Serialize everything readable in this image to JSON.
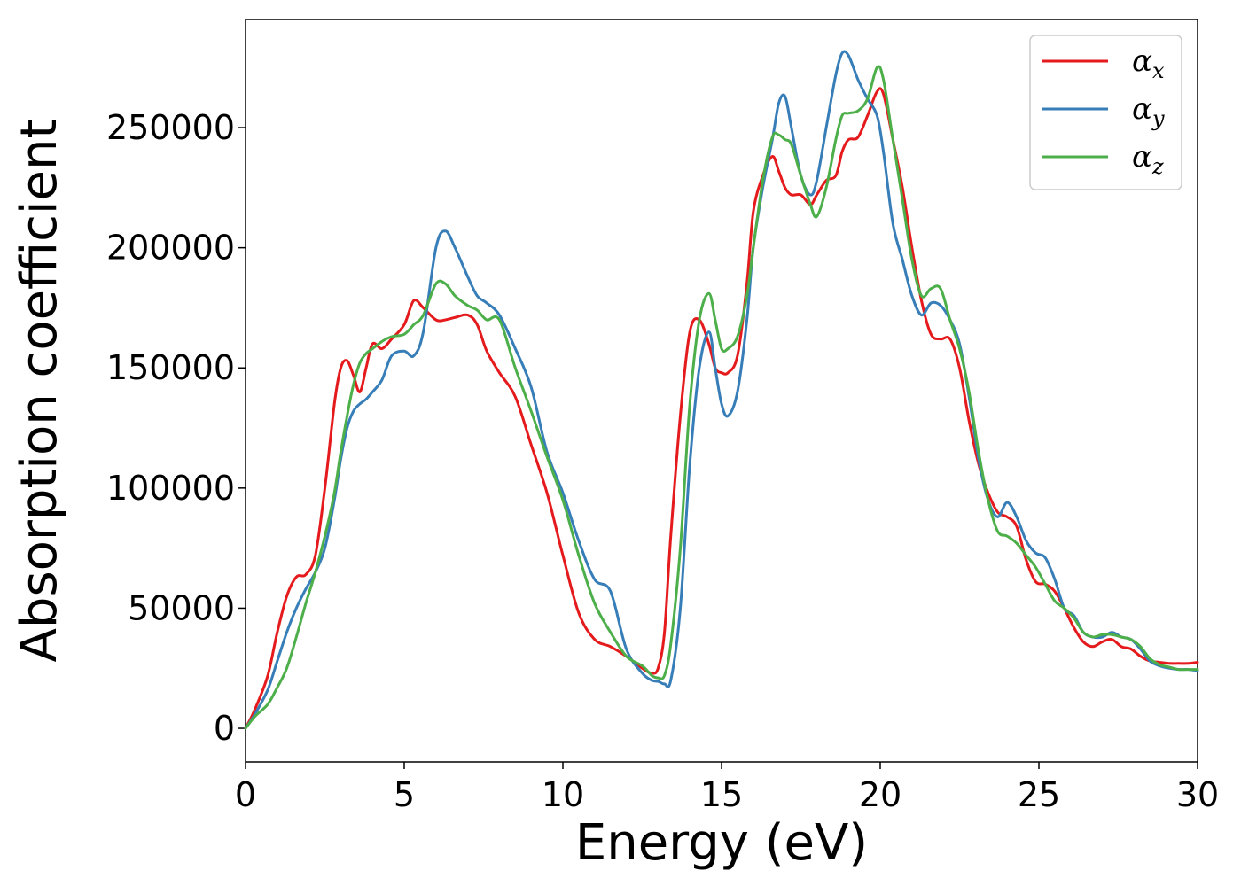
{
  "chart_data": {
    "type": "line",
    "xlabel": "Energy (eV)",
    "ylabel": "Absorption coefficient",
    "xlim": [
      0,
      30
    ],
    "ylim": [
      -14000,
      295000
    ],
    "xticks": [
      0,
      5,
      10,
      15,
      20,
      25,
      30
    ],
    "yticks": [
      0,
      50000,
      100000,
      150000,
      200000,
      250000
    ],
    "grid": false,
    "legend_position": "top-right",
    "series": [
      {
        "name": "α_x",
        "label_main": "α",
        "label_sub": "x",
        "color": "#e41a1c",
        "x": [
          0,
          0.3,
          0.7,
          1.0,
          1.3,
          1.6,
          1.9,
          2.2,
          2.5,
          2.8,
          3.0,
          3.2,
          3.4,
          3.6,
          3.8,
          4.0,
          4.3,
          4.6,
          5.0,
          5.3,
          5.6,
          6.0,
          6.3,
          6.6,
          7.0,
          7.3,
          7.6,
          8.0,
          8.5,
          9.0,
          9.5,
          10.0,
          10.5,
          11.0,
          11.5,
          12.0,
          12.5,
          12.8,
          13.0,
          13.2,
          13.4,
          13.7,
          14.0,
          14.3,
          14.6,
          14.8,
          15.0,
          15.2,
          15.5,
          15.8,
          16.0,
          16.3,
          16.6,
          16.8,
          17.0,
          17.2,
          17.5,
          17.8,
          18.0,
          18.3,
          18.6,
          18.8,
          19.0,
          19.3,
          19.6,
          19.9,
          20.1,
          20.4,
          20.7,
          21.0,
          21.3,
          21.6,
          21.9,
          22.2,
          22.5,
          22.8,
          23.1,
          23.4,
          23.7,
          24.0,
          24.3,
          24.6,
          24.9,
          25.2,
          25.5,
          25.8,
          26.1,
          26.4,
          26.7,
          27.0,
          27.3,
          27.6,
          27.9,
          28.2,
          28.5,
          28.8,
          29.1,
          29.4,
          29.7,
          30.0
        ],
        "y": [
          0,
          8000,
          22000,
          40000,
          55000,
          63000,
          64000,
          72000,
          100000,
          135000,
          150000,
          153000,
          147000,
          140000,
          150000,
          160000,
          158000,
          162000,
          168000,
          178000,
          175000,
          170000,
          170000,
          171000,
          172000,
          168000,
          157000,
          148000,
          138000,
          118000,
          98000,
          72000,
          48000,
          37000,
          34000,
          30000,
          25000,
          23000,
          25000,
          40000,
          80000,
          130000,
          165000,
          170000,
          160000,
          150000,
          148000,
          148000,
          155000,
          185000,
          215000,
          230000,
          238000,
          232000,
          225000,
          222000,
          222000,
          218000,
          222000,
          228000,
          230000,
          240000,
          245000,
          246000,
          255000,
          265000,
          264000,
          245000,
          225000,
          200000,
          178000,
          164000,
          162000,
          162000,
          150000,
          128000,
          110000,
          98000,
          90000,
          88000,
          84000,
          70000,
          61000,
          60000,
          57000,
          50000,
          42000,
          36000,
          34000,
          36000,
          37000,
          34000,
          33000,
          30000,
          28000,
          27500,
          27000,
          27000,
          27000,
          27500
        ]
      },
      {
        "name": "α_y",
        "label_main": "α",
        "label_sub": "y",
        "color": "#377eb8",
        "x": [
          0,
          0.3,
          0.7,
          1.0,
          1.3,
          1.6,
          1.9,
          2.2,
          2.5,
          2.8,
          3.0,
          3.2,
          3.4,
          3.6,
          3.8,
          4.0,
          4.3,
          4.6,
          5.0,
          5.3,
          5.6,
          6.0,
          6.3,
          6.6,
          7.0,
          7.3,
          7.6,
          8.0,
          8.5,
          9.0,
          9.5,
          10.0,
          10.5,
          11.0,
          11.5,
          12.0,
          12.5,
          12.8,
          13.0,
          13.2,
          13.4,
          13.7,
          14.0,
          14.3,
          14.6,
          14.8,
          15.0,
          15.2,
          15.5,
          15.8,
          16.0,
          16.3,
          16.6,
          16.8,
          17.0,
          17.2,
          17.5,
          17.8,
          18.0,
          18.3,
          18.6,
          18.8,
          19.0,
          19.3,
          19.6,
          19.9,
          20.1,
          20.4,
          20.7,
          21.0,
          21.3,
          21.6,
          21.9,
          22.2,
          22.5,
          22.8,
          23.1,
          23.4,
          23.7,
          24.0,
          24.3,
          24.6,
          24.9,
          25.2,
          25.5,
          25.8,
          26.1,
          26.4,
          26.7,
          27.0,
          27.3,
          27.6,
          27.9,
          28.2,
          28.5,
          28.8,
          29.1,
          29.4,
          29.7,
          30.0
        ],
        "y": [
          0,
          6000,
          16000,
          28000,
          40000,
          50000,
          58000,
          65000,
          75000,
          95000,
          112000,
          125000,
          132000,
          135000,
          137000,
          140000,
          145000,
          155000,
          157000,
          155000,
          165000,
          200000,
          207000,
          200000,
          188000,
          180000,
          177000,
          172000,
          158000,
          142000,
          115000,
          98000,
          78000,
          62000,
          57000,
          33000,
          23000,
          20000,
          19500,
          18500,
          20000,
          50000,
          110000,
          150000,
          165000,
          150000,
          135000,
          130000,
          140000,
          170000,
          200000,
          225000,
          245000,
          260000,
          263000,
          250000,
          230000,
          222000,
          228000,
          250000,
          272000,
          281000,
          280000,
          270000,
          262000,
          255000,
          240000,
          210000,
          195000,
          180000,
          172000,
          177000,
          176000,
          170000,
          160000,
          138000,
          112000,
          95000,
          88000,
          94000,
          88000,
          78000,
          73000,
          71000,
          62000,
          50000,
          47000,
          40000,
          38000,
          38000,
          40000,
          38000,
          37000,
          33000,
          28000,
          26000,
          25000,
          24500,
          24500,
          24000
        ]
      },
      {
        "name": "α_z",
        "label_main": "α",
        "label_sub": "z",
        "color": "#4daf4a",
        "x": [
          0,
          0.3,
          0.7,
          1.0,
          1.3,
          1.6,
          1.9,
          2.2,
          2.5,
          2.8,
          3.0,
          3.2,
          3.4,
          3.6,
          3.8,
          4.0,
          4.3,
          4.6,
          5.0,
          5.3,
          5.6,
          6.0,
          6.3,
          6.6,
          7.0,
          7.3,
          7.6,
          8.0,
          8.5,
          9.0,
          9.5,
          10.0,
          10.5,
          11.0,
          11.5,
          12.0,
          12.5,
          12.8,
          13.0,
          13.2,
          13.4,
          13.7,
          14.0,
          14.3,
          14.6,
          14.8,
          15.0,
          15.2,
          15.5,
          15.8,
          16.0,
          16.3,
          16.6,
          16.8,
          17.0,
          17.2,
          17.5,
          17.8,
          18.0,
          18.3,
          18.6,
          18.8,
          19.0,
          19.3,
          19.6,
          19.9,
          20.1,
          20.4,
          20.7,
          21.0,
          21.3,
          21.6,
          21.9,
          22.2,
          22.5,
          22.8,
          23.1,
          23.4,
          23.7,
          24.0,
          24.3,
          24.6,
          24.9,
          25.2,
          25.5,
          25.8,
          26.1,
          26.4,
          26.7,
          27.0,
          27.3,
          27.6,
          27.9,
          28.2,
          28.5,
          28.8,
          29.1,
          29.4,
          29.7,
          30.0
        ],
        "y": [
          0,
          5000,
          10000,
          17000,
          25000,
          38000,
          52000,
          65000,
          80000,
          98000,
          115000,
          130000,
          143000,
          152000,
          156000,
          158000,
          161000,
          163000,
          164000,
          168000,
          172000,
          185000,
          185000,
          180000,
          176000,
          174000,
          170000,
          170000,
          150000,
          132000,
          113000,
          95000,
          72000,
          52000,
          40000,
          30000,
          26000,
          22000,
          21000,
          22000,
          35000,
          75000,
          135000,
          170000,
          181000,
          170000,
          158000,
          158000,
          163000,
          180000,
          200000,
          228000,
          246000,
          247000,
          245000,
          243000,
          230000,
          218000,
          213000,
          225000,
          245000,
          255000,
          256000,
          257000,
          262000,
          275000,
          270000,
          245000,
          220000,
          195000,
          180000,
          183000,
          183000,
          170000,
          158000,
          140000,
          115000,
          95000,
          82000,
          80000,
          77000,
          72000,
          67000,
          60000,
          53000,
          50000,
          46000,
          40000,
          38000,
          39000,
          39000,
          38000,
          37000,
          34000,
          29000,
          26500,
          25500,
          24500,
          24500,
          24500
        ]
      }
    ]
  }
}
